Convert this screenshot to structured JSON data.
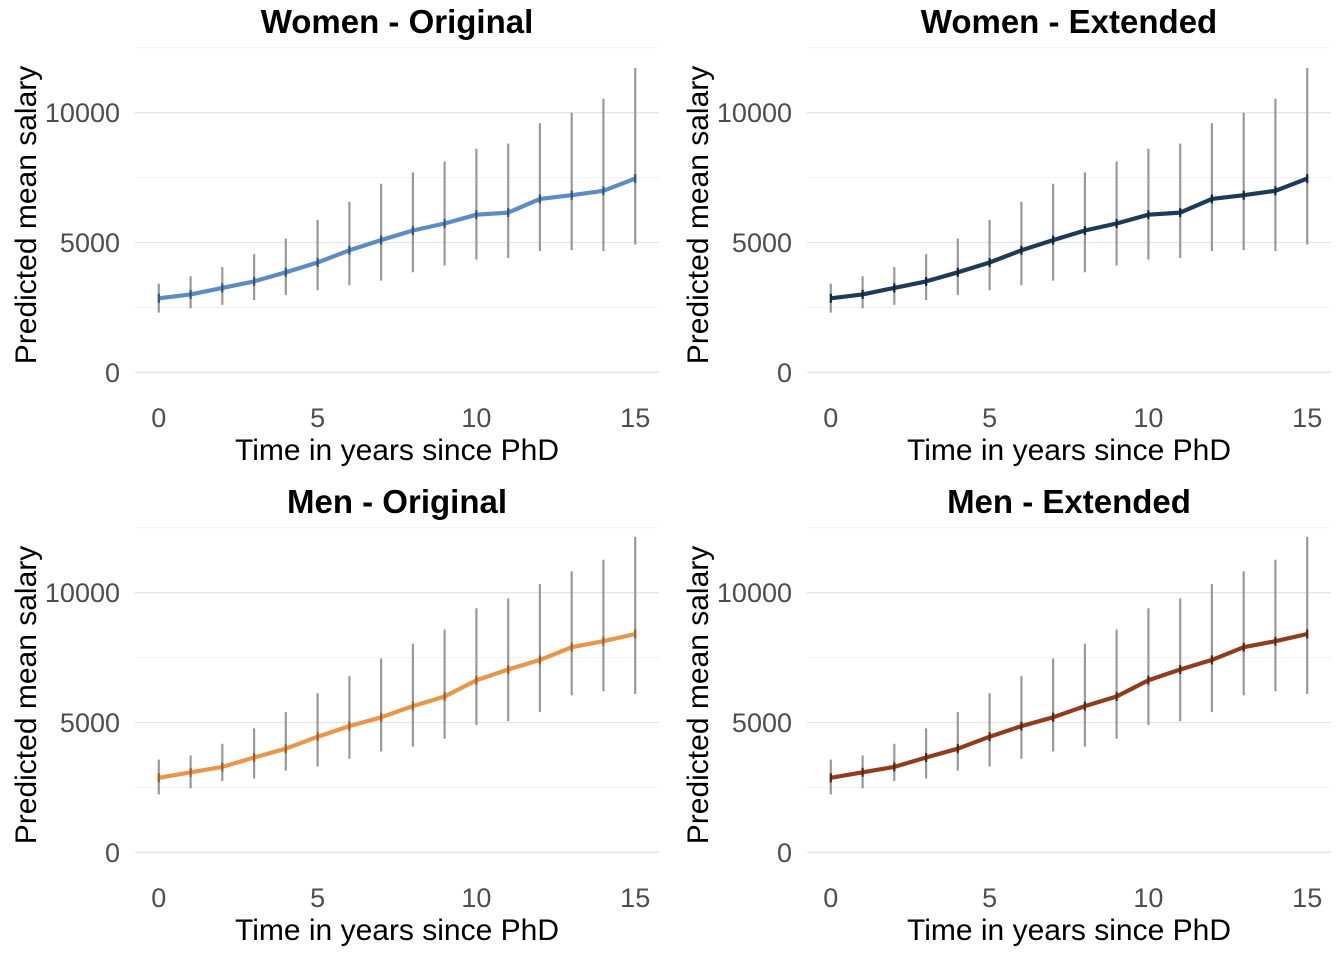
{
  "figure": {
    "background": "#FFFFFF",
    "grid_major_color": "#E5E5E5",
    "grid_minor_color": "#F0F0F0",
    "error_bar_color": "#999999",
    "tick_label_color": "#4D4D4D",
    "text_color": "#000000"
  },
  "chart_data": [
    {
      "type": "line",
      "title": "Women - Original",
      "xlabel": "Time in years since PhD",
      "ylabel": "Predicted mean salary",
      "x": [
        0,
        1,
        2,
        3,
        4,
        5,
        6,
        7,
        8,
        9,
        10,
        11,
        12,
        13,
        14,
        15
      ],
      "series": [
        {
          "name": "predicted mean salary",
          "values": [
            2850,
            3000,
            3250,
            3500,
            3850,
            4230,
            4700,
            5090,
            5460,
            5730,
            6070,
            6150,
            6680,
            6820,
            6990,
            7460
          ]
        }
      ],
      "error_low": [
        2300,
        2460,
        2600,
        2780,
        2970,
        3160,
        3350,
        3530,
        3850,
        4110,
        4340,
        4400,
        4670,
        4700,
        4670,
        4920
      ],
      "error_high": [
        3410,
        3700,
        4060,
        4550,
        5150,
        5870,
        6570,
        7260,
        7700,
        8120,
        8610,
        8810,
        9600,
        10000,
        10540,
        11720
      ],
      "x_ticks": [
        0,
        5,
        10,
        15
      ],
      "x_tick_labels": [
        "0",
        "5",
        "10",
        "15"
      ],
      "y_ticks": [
        0,
        5000,
        10000
      ],
      "y_tick_labels": [
        "0",
        "5000",
        "10000"
      ],
      "y_minor_ticks": [
        2500,
        7500,
        12500
      ],
      "xlim": [
        -0.75,
        15.75
      ],
      "ylim": [
        -1300,
        12800
      ],
      "grid": "horizontal",
      "legend": "none",
      "error_bars": true,
      "line_color": "#5D8CC4",
      "marker_color": "#2F5578"
    },
    {
      "type": "line",
      "title": "Women - Extended",
      "xlabel": "Time in years since PhD",
      "ylabel": "Predicted mean salary",
      "x": [
        0,
        1,
        2,
        3,
        4,
        5,
        6,
        7,
        8,
        9,
        10,
        11,
        12,
        13,
        14,
        15
      ],
      "series": [
        {
          "name": "predicted mean salary",
          "values": [
            2850,
            3000,
            3250,
            3500,
            3850,
            4230,
            4700,
            5090,
            5460,
            5730,
            6070,
            6150,
            6680,
            6820,
            6990,
            7460
          ]
        }
      ],
      "error_low": [
        2300,
        2460,
        2600,
        2780,
        2970,
        3160,
        3350,
        3530,
        3850,
        4110,
        4340,
        4400,
        4670,
        4700,
        4670,
        4920
      ],
      "error_high": [
        3410,
        3700,
        4060,
        4550,
        5150,
        5870,
        6570,
        7260,
        7700,
        8120,
        8610,
        8810,
        9600,
        10000,
        10540,
        11720
      ],
      "x_ticks": [
        0,
        5,
        10,
        15
      ],
      "x_tick_labels": [
        "0",
        "5",
        "10",
        "15"
      ],
      "y_ticks": [
        0,
        5000,
        10000
      ],
      "y_tick_labels": [
        "0",
        "5000",
        "10000"
      ],
      "y_minor_ticks": [
        2500,
        7500,
        12500
      ],
      "xlim": [
        -0.75,
        15.75
      ],
      "ylim": [
        -1300,
        12800
      ],
      "grid": "horizontal",
      "legend": "none",
      "error_bars": true,
      "line_color": "#1C3B59",
      "marker_color": "#122636"
    },
    {
      "type": "line",
      "title": "Men - Original",
      "xlabel": "Time in years since PhD",
      "ylabel": "Predicted mean salary",
      "x": [
        0,
        1,
        2,
        3,
        4,
        5,
        6,
        7,
        8,
        9,
        10,
        11,
        12,
        13,
        14,
        15
      ],
      "series": [
        {
          "name": "predicted mean salary",
          "values": [
            2870,
            3080,
            3290,
            3650,
            3990,
            4450,
            4860,
            5200,
            5630,
            6000,
            6630,
            7040,
            7410,
            7900,
            8130,
            8410
          ]
        }
      ],
      "error_low": [
        2230,
        2460,
        2740,
        2840,
        3150,
        3300,
        3600,
        3880,
        4070,
        4370,
        4900,
        5050,
        5400,
        6050,
        6200,
        6100
      ],
      "error_high": [
        3570,
        3730,
        4180,
        4770,
        5400,
        6130,
        6780,
        7460,
        8030,
        8580,
        9400,
        9780,
        10330,
        10820,
        11270,
        12150
      ],
      "x_ticks": [
        0,
        5,
        10,
        15
      ],
      "x_tick_labels": [
        "0",
        "5",
        "10",
        "15"
      ],
      "y_ticks": [
        0,
        5000,
        10000
      ],
      "y_tick_labels": [
        "0",
        "5000",
        "10000"
      ],
      "y_minor_ticks": [
        2500,
        7500,
        12500
      ],
      "xlim": [
        -0.75,
        15.75
      ],
      "ylim": [
        -1300,
        12800
      ],
      "grid": "horizontal",
      "legend": "none",
      "error_bars": true,
      "line_color": "#E8964A",
      "marker_color": "#A05C28"
    },
    {
      "type": "line",
      "title": "Men - Extended",
      "xlabel": "Time in years since PhD",
      "ylabel": "Predicted mean salary",
      "x": [
        0,
        1,
        2,
        3,
        4,
        5,
        6,
        7,
        8,
        9,
        10,
        11,
        12,
        13,
        14,
        15
      ],
      "series": [
        {
          "name": "predicted mean salary",
          "values": [
            2870,
            3080,
            3290,
            3650,
            3990,
            4450,
            4860,
            5200,
            5630,
            6000,
            6630,
            7040,
            7410,
            7900,
            8130,
            8410
          ]
        }
      ],
      "error_low": [
        2230,
        2460,
        2740,
        2840,
        3150,
        3300,
        3600,
        3880,
        4070,
        4370,
        4900,
        5050,
        5400,
        6050,
        6200,
        6100
      ],
      "error_high": [
        3570,
        3730,
        4180,
        4770,
        5400,
        6130,
        6780,
        7460,
        8030,
        8580,
        9400,
        9780,
        10330,
        10820,
        11270,
        12150
      ],
      "x_ticks": [
        0,
        5,
        10,
        15
      ],
      "x_tick_labels": [
        "0",
        "5",
        "10",
        "15"
      ],
      "y_ticks": [
        0,
        5000,
        10000
      ],
      "y_tick_labels": [
        "0",
        "5000",
        "10000"
      ],
      "y_minor_ticks": [
        2500,
        7500,
        12500
      ],
      "xlim": [
        -0.75,
        15.75
      ],
      "ylim": [
        -1300,
        12800
      ],
      "grid": "horizontal",
      "legend": "none",
      "error_bars": true,
      "line_color": "#8E3D1D",
      "marker_color": "#552510"
    }
  ]
}
